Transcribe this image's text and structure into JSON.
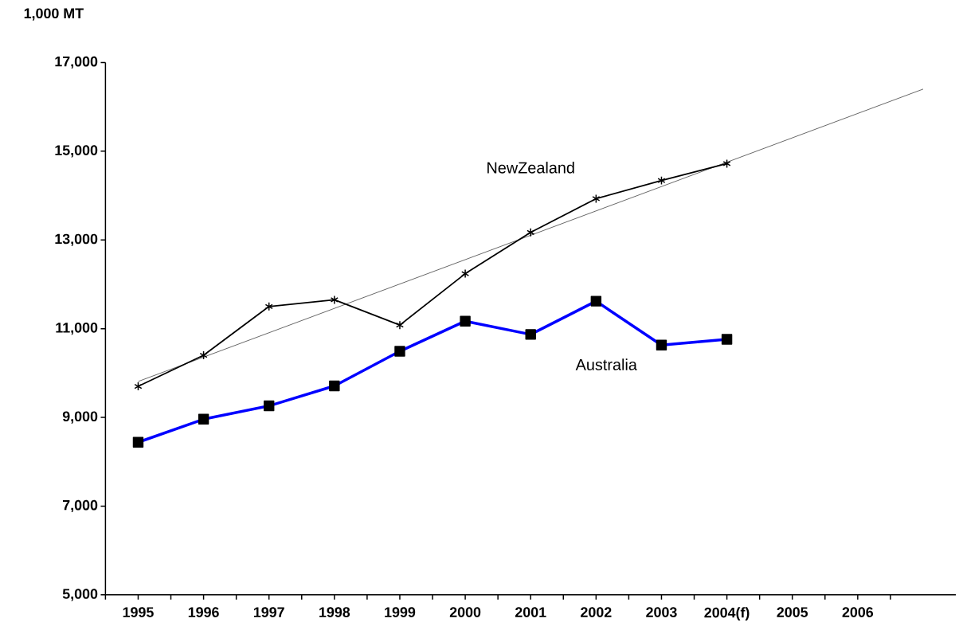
{
  "chart_data": {
    "type": "line",
    "ylabel": "1,000 MT",
    "x": [
      1995,
      1996,
      1997,
      1998,
      1999,
      2000,
      2001,
      2002,
      2003,
      2004
    ],
    "xlim": [
      1994.5,
      2007.5
    ],
    "xticks": [
      {
        "value": 1994.5,
        "label": null
      },
      {
        "value": 1995,
        "label": "1995"
      },
      {
        "value": 1995.5,
        "label": null
      },
      {
        "value": 1996,
        "label": "1996"
      },
      {
        "value": 1996.5,
        "label": null
      },
      {
        "value": 1997,
        "label": "1997"
      },
      {
        "value": 1997.5,
        "label": null
      },
      {
        "value": 1998,
        "label": "1998"
      },
      {
        "value": 1998.5,
        "label": null
      },
      {
        "value": 1999,
        "label": "1999"
      },
      {
        "value": 1999.5,
        "label": null
      },
      {
        "value": 2000,
        "label": "2000"
      },
      {
        "value": 2000.5,
        "label": null
      },
      {
        "value": 2001,
        "label": "2001"
      },
      {
        "value": 2001.5,
        "label": null
      },
      {
        "value": 2002,
        "label": "2002"
      },
      {
        "value": 2002.5,
        "label": null
      },
      {
        "value": 2003,
        "label": "2003"
      },
      {
        "value": 2003.5,
        "label": null
      },
      {
        "value": 2004,
        "label": "2004(f)"
      },
      {
        "value": 2004.5,
        "label": null
      },
      {
        "value": 2005,
        "label": "2005"
      },
      {
        "value": 2005.5,
        "label": null
      },
      {
        "value": 2006,
        "label": "2006"
      },
      {
        "value": 2006.5,
        "label": null
      }
    ],
    "ylim": [
      5000,
      17000
    ],
    "yticks": [
      {
        "value": 5000,
        "label": "5,000"
      },
      {
        "value": 7000,
        "label": "7,000"
      },
      {
        "value": 9000,
        "label": "9,000"
      },
      {
        "value": 11000,
        "label": "11,000"
      },
      {
        "value": 13000,
        "label": "13,000"
      },
      {
        "value": 15000,
        "label": "15,000"
      },
      {
        "value": 17000,
        "label": "17,000"
      }
    ],
    "grid": false,
    "series": [
      {
        "name": "NewZealand",
        "color": "#000000",
        "marker": "cross",
        "values": [
          9700,
          10400,
          11500,
          11650,
          11080,
          12240,
          13170,
          13930,
          14340,
          14720
        ]
      },
      {
        "name": "Australia",
        "color": "#0000ff",
        "marker": "square",
        "values": [
          8440,
          8960,
          9260,
          9710,
          10490,
          11170,
          10870,
          11620,
          10630,
          10760
        ]
      },
      {
        "type": "line",
        "color": "#000000",
        "marker": "none",
        "x": [
          1995,
          2007
        ],
        "values": [
          9810,
          16400
        ]
      }
    ]
  }
}
